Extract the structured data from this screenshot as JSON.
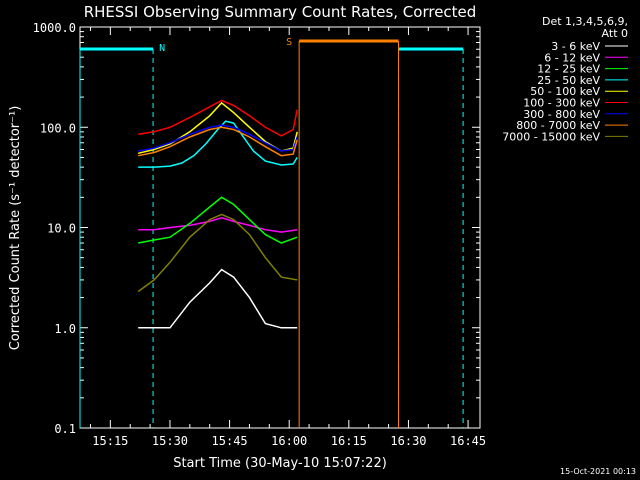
{
  "title": "RHESSI Observing Summary Count Rates, Corrected",
  "xlabel": "Start Time (30-May-10 15:07:22)",
  "ylabel": "Corrected Count Rate (s⁻¹ detector⁻¹)",
  "footer_date": "15-Oct-2021 00:13",
  "legend": {
    "header_line1": "Det 1,3,4,5,6,9,",
    "header_line2": "Att 0"
  },
  "markers": {
    "n_label": "N",
    "s_label": "S"
  },
  "colors": {
    "background": "#000000",
    "axes": "#ffffff",
    "night": "#00ffff",
    "saa": "#ff8000"
  },
  "chart_data": {
    "type": "line",
    "title": "RHESSI Observing Summary Count Rates, Corrected",
    "xlabel": "Start Time (30-May-10 15:07:22)",
    "ylabel": "Corrected Count Rate (s⁻¹ detector⁻¹)",
    "x_unit": "UT (HH:MM), 30-May-10",
    "xlim": [
      "15:07:22",
      "16:48:00"
    ],
    "ylim": [
      0.1,
      1000
    ],
    "yscale": "log",
    "x_ticks": [
      "15:15",
      "15:30",
      "15:45",
      "16:00",
      "16:15",
      "16:30",
      "16:45"
    ],
    "y_ticks": [
      "0.1",
      "1.0",
      "10.0",
      "100.0",
      "1000.0"
    ],
    "legend_position": "top-right",
    "series": [
      {
        "name": "3 - 6 keV",
        "color": "#ffffff",
        "x": [
          "15:22",
          "15:26",
          "15:30",
          "15:35",
          "15:40",
          "15:43",
          "15:46",
          "15:50",
          "15:54",
          "15:58",
          "16:02"
        ],
        "values": [
          1.0,
          1.0,
          1.0,
          1.8,
          2.8,
          3.8,
          3.2,
          2.0,
          1.1,
          1.0,
          1.0
        ]
      },
      {
        "name": "6 - 12 keV",
        "color": "#ff00ff",
        "x": [
          "15:22",
          "15:26",
          "15:30",
          "15:35",
          "15:40",
          "15:43",
          "15:46",
          "15:50",
          "15:54",
          "15:58",
          "16:02"
        ],
        "values": [
          9.5,
          9.5,
          10,
          10.5,
          11.5,
          12.5,
          11.5,
          10.5,
          9.5,
          9,
          9.5
        ]
      },
      {
        "name": "12 - 25 keV",
        "color": "#00ff00",
        "x": [
          "15:22",
          "15:26",
          "15:30",
          "15:35",
          "15:40",
          "15:43",
          "15:46",
          "15:50",
          "15:54",
          "15:58",
          "16:02"
        ],
        "values": [
          7,
          7.5,
          8,
          11,
          16,
          20,
          17,
          12,
          8.5,
          7,
          8
        ]
      },
      {
        "name": "25 - 50 keV",
        "color": "#00ffff",
        "x": [
          "15:22",
          "15:26",
          "15:30",
          "15:33",
          "15:36",
          "15:39",
          "15:42",
          "15:44",
          "15:46",
          "15:48",
          "15:51",
          "15:54",
          "15:58",
          "16:01",
          "16:02"
        ],
        "values": [
          40,
          40,
          41,
          44,
          52,
          68,
          95,
          115,
          110,
          85,
          58,
          46,
          42,
          43,
          50
        ]
      },
      {
        "name": "50 - 100 keV",
        "color": "#ffff00",
        "x": [
          "15:22",
          "15:26",
          "15:30",
          "15:35",
          "15:40",
          "15:43",
          "15:46",
          "15:50",
          "15:54",
          "15:58",
          "16:01",
          "16:02"
        ],
        "values": [
          55,
          60,
          68,
          90,
          130,
          175,
          140,
          100,
          72,
          58,
          62,
          90
        ]
      },
      {
        "name": "100 - 300 keV",
        "color": "#ff0000",
        "x": [
          "15:22",
          "15:26",
          "15:30",
          "15:35",
          "15:40",
          "15:43",
          "15:46",
          "15:50",
          "15:54",
          "15:58",
          "16:01",
          "16:02"
        ],
        "values": [
          85,
          90,
          100,
          125,
          160,
          185,
          165,
          130,
          100,
          82,
          95,
          150
        ]
      },
      {
        "name": "300 - 800 keV",
        "color": "#0000ff",
        "x": [
          "15:22",
          "15:26",
          "15:30",
          "15:35",
          "15:40",
          "15:43",
          "15:46",
          "15:50",
          "15:54",
          "15:58",
          "16:01",
          "16:02"
        ],
        "values": [
          58,
          62,
          70,
          85,
          100,
          105,
          100,
          85,
          70,
          58,
          60,
          80
        ]
      },
      {
        "name": "800 - 7000 keV",
        "color": "#ff8000",
        "x": [
          "15:22",
          "15:26",
          "15:30",
          "15:35",
          "15:40",
          "15:43",
          "15:46",
          "15:50",
          "15:54",
          "15:58",
          "16:01",
          "16:02"
        ],
        "values": [
          52,
          56,
          64,
          80,
          95,
          100,
          95,
          80,
          64,
          52,
          54,
          75
        ]
      },
      {
        "name": "7000 - 15000 keV",
        "color": "#808000",
        "x": [
          "15:22",
          "15:26",
          "15:30",
          "15:35",
          "15:40",
          "15:43",
          "15:46",
          "15:50",
          "15:54",
          "15:58",
          "16:02"
        ],
        "values": [
          2.3,
          3.0,
          4.5,
          8,
          12,
          13.5,
          12,
          8.5,
          5,
          3.2,
          3.0
        ]
      }
    ],
    "night_intervals": [
      [
        "15:07:22",
        "15:25:45"
      ],
      [
        "16:27:30",
        "16:43:45"
      ]
    ],
    "saa_interval": [
      "16:02:30",
      "16:27:30"
    ]
  }
}
